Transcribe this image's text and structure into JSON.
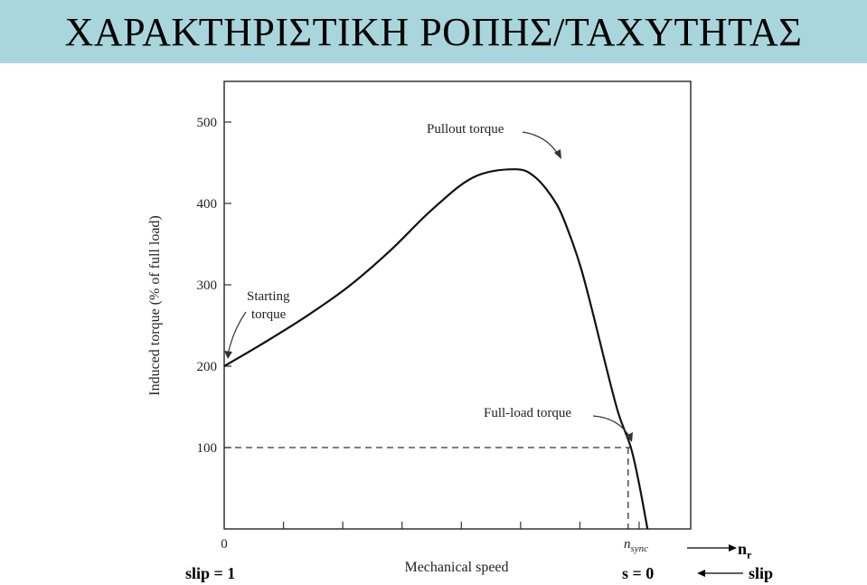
{
  "title": "ΧΑΡΑΚΤΗΡΙΣΤΙΚΗ ΡΟΠΗΣ/ΤΑΧΥΤΗΤΑΣ",
  "chart_data": {
    "type": "line",
    "title": "",
    "xlabel": "Mechanical speed",
    "ylabel": "Induced torque (% of full load)",
    "ylim": [
      0,
      550
    ],
    "xlim": [
      0,
      1.1
    ],
    "x_tick_labels": [
      "0",
      "nsync"
    ],
    "y_ticks": [
      100,
      200,
      300,
      400,
      500
    ],
    "grid": false,
    "series": [
      {
        "x": [
          0,
          0.1,
          0.2,
          0.3,
          0.4,
          0.5,
          0.6,
          0.7,
          0.75,
          0.8,
          0.83,
          0.86,
          0.89,
          0.92,
          0.95,
          0.98,
          1.0,
          1.02
        ],
        "values": [
          200,
          230,
          262,
          298,
          342,
          392,
          432,
          442,
          432,
          400,
          365,
          320,
          262,
          200,
          142,
          100,
          55,
          0
        ]
      }
    ],
    "reference_lines": {
      "full_load_torque": 100,
      "full_load_speed": 0.98
    },
    "annotations": [
      "Pullout torque",
      "Starting torque",
      "Full-load torque"
    ]
  },
  "labels": {
    "x_zero": "0",
    "n_sync_base": "n",
    "n_sync_sub": "sync",
    "slip_left": "slip = 1",
    "s_zero": "s = 0",
    "nr_base": "n",
    "nr_sub": "r",
    "slip_right": "slip"
  }
}
